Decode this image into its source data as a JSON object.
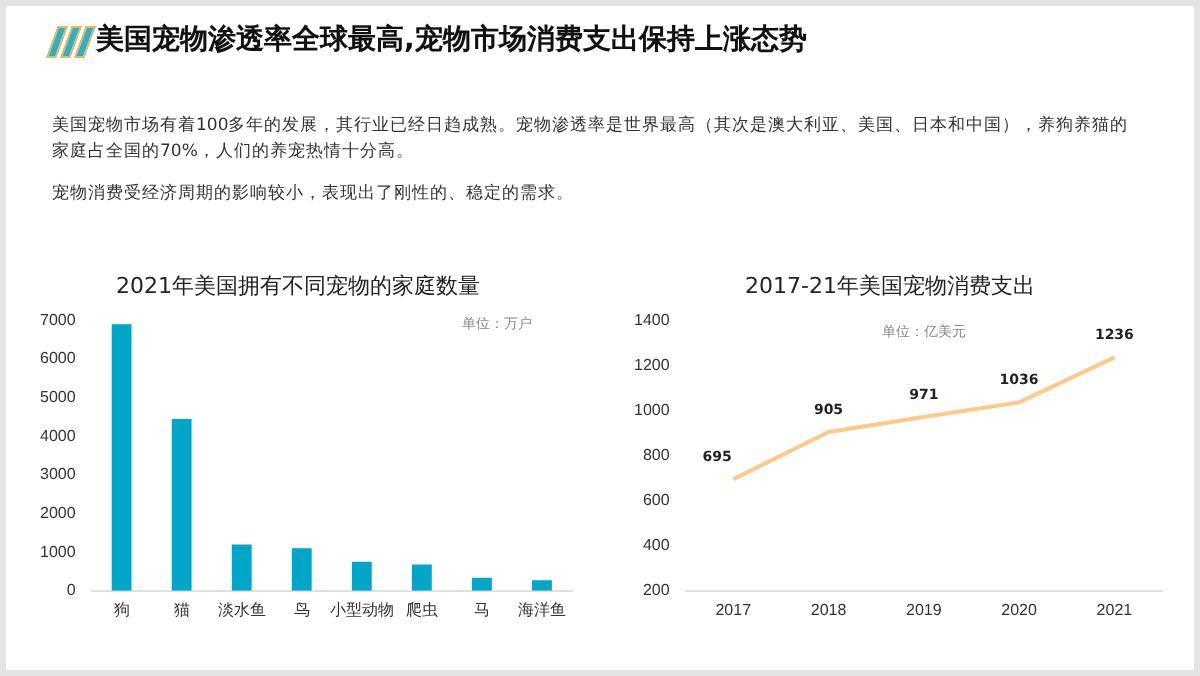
{
  "chart_data": [
    {
      "type": "other",
      "title": "美国宠物渗透率全球最高,宠物市场消费支出保持上涨态势",
      "annotations": [
        "美国宠物市场有着100多年的发展，其行业已经日趋成熟。宠物渗透率是世界最高（其次是澳大利亚、美国、日本和中国），养狗养猫的家庭占全国的70%，人们的养宠热情十分高。",
        "宠物消费受经济周期的影响较小，表现出了刚性的、稳定的需求。"
      ]
    },
    {
      "type": "bar",
      "title": "2021年美国拥有不同宠物的家庭数量",
      "annotations": [
        "单位：万户"
      ],
      "categories": [
        "狗",
        "猫",
        "淡水鱼",
        "鸟",
        "小型动物",
        "爬虫",
        "马",
        "海洋鱼"
      ],
      "values": [
        6900,
        4450,
        1200,
        1100,
        750,
        680,
        340,
        270
      ],
      "color": "#00a6c7",
      "ylim": [
        0,
        7000
      ],
      "yticks": [
        0,
        1000,
        2000,
        3000,
        4000,
        5000,
        6000,
        7000
      ],
      "grid": false,
      "legend": false
    },
    {
      "type": "line",
      "title": "2017-21年美国宠物消费支出",
      "annotations": [
        "单位：亿美元"
      ],
      "categories": [
        "2017",
        "2018",
        "2019",
        "2020",
        "2021"
      ],
      "values": [
        695,
        905,
        971,
        1036,
        1236
      ],
      "color": "#fec98a",
      "ylim": [
        200,
        1400
      ],
      "yticks": [
        200,
        400,
        600,
        800,
        1000,
        1200,
        1400
      ],
      "grid": false,
      "legend": false,
      "data_labels": true,
      "marker": "none"
    }
  ]
}
